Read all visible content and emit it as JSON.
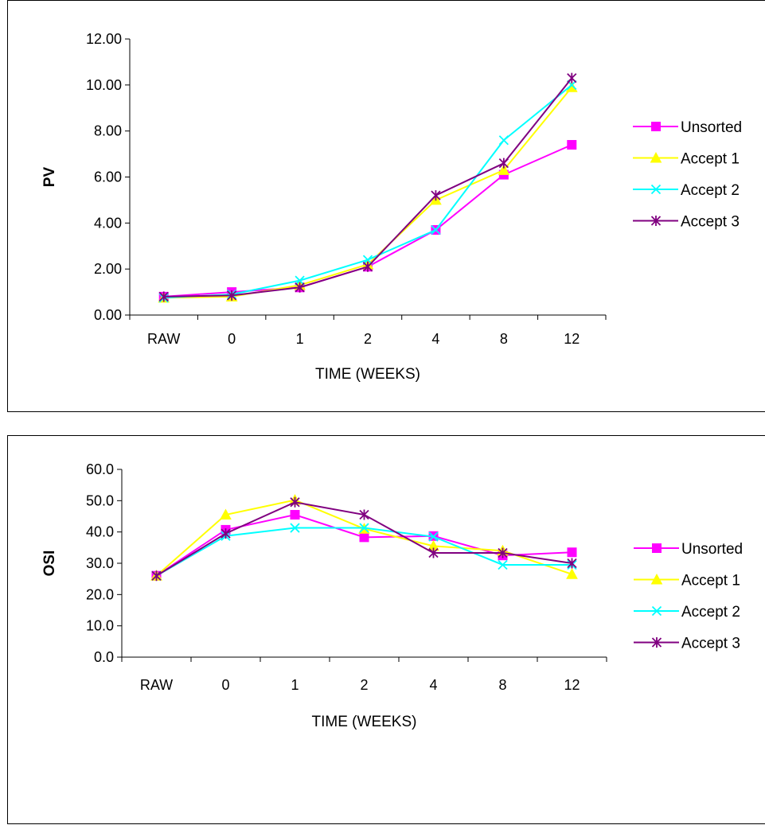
{
  "chart_data": [
    {
      "type": "line",
      "xlabel": "TIME (WEEKS)",
      "ylabel": "PV",
      "categories": [
        "RAW",
        "0",
        "1",
        "2",
        "4",
        "8",
        "12"
      ],
      "ylim": [
        0,
        12
      ],
      "ytick_labels": [
        "0.00",
        "2.00",
        "4.00",
        "6.00",
        "8.00",
        "10.00",
        "12.00"
      ],
      "grid": false,
      "legend_position": "right",
      "series": [
        {
          "name": "Unsorted",
          "color": "#ff00ff",
          "marker": "square",
          "values": [
            0.8,
            1.0,
            1.2,
            2.1,
            3.7,
            6.1,
            7.4
          ]
        },
        {
          "name": "Accept 1",
          "color": "#ffff00",
          "marker": "triangle",
          "values": [
            0.75,
            0.8,
            1.3,
            2.2,
            5.0,
            6.3,
            9.9
          ]
        },
        {
          "name": "Accept 2",
          "color": "#00ffff",
          "marker": "x",
          "values": [
            0.75,
            0.9,
            1.5,
            2.4,
            3.7,
            7.6,
            10.0
          ]
        },
        {
          "name": "Accept 3",
          "color": "#800080",
          "marker": "star",
          "values": [
            0.8,
            0.85,
            1.2,
            2.1,
            5.2,
            6.6,
            10.3
          ]
        }
      ]
    },
    {
      "type": "line",
      "xlabel": "TIME (WEEKS)",
      "ylabel": "OSI",
      "categories": [
        "RAW",
        "0",
        "1",
        "2",
        "4",
        "8",
        "12"
      ],
      "ylim": [
        0,
        60
      ],
      "ytick_labels": [
        "0.0",
        "10.0",
        "20.0",
        "30.0",
        "40.0",
        "50.0",
        "60.0"
      ],
      "grid": false,
      "legend_position": "right",
      "series": [
        {
          "name": "Unsorted",
          "color": "#ff00ff",
          "marker": "square",
          "values": [
            26.0,
            40.7,
            45.5,
            38.3,
            38.7,
            32.5,
            33.5
          ]
        },
        {
          "name": "Accept 1",
          "color": "#ffff00",
          "marker": "triangle",
          "values": [
            26.0,
            45.5,
            50.2,
            41.0,
            35.5,
            34.0,
            26.5
          ]
        },
        {
          "name": "Accept 2",
          "color": "#00ffff",
          "marker": "x",
          "values": [
            26.0,
            38.7,
            41.3,
            41.3,
            38.5,
            29.5,
            29.5
          ]
        },
        {
          "name": "Accept 3",
          "color": "#800080",
          "marker": "star",
          "values": [
            26.0,
            39.5,
            49.5,
            45.5,
            33.3,
            33.3,
            30.0
          ]
        }
      ]
    }
  ]
}
